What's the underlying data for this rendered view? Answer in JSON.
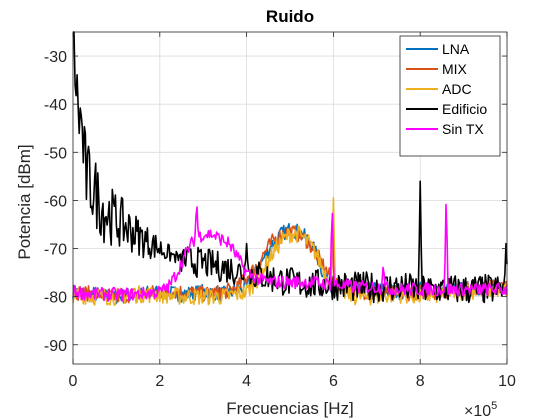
{
  "chart_data": {
    "type": "line",
    "title": "Ruido",
    "xlabel": "Frecuencias [Hz]",
    "ylabel": "Potencia [dBm]",
    "x_exponent_label": "×10",
    "x_exponent_power": "5",
    "xlim": [
      0,
      10
    ],
    "ylim": [
      -94,
      -25
    ],
    "xticks": [
      0,
      2,
      4,
      6,
      8,
      10
    ],
    "yticks": [
      -90,
      -80,
      -70,
      -60,
      -50,
      -40,
      -30
    ],
    "grid": true,
    "legend_position": "top-right",
    "series": [
      {
        "name": "LNA",
        "color": "#0072BD",
        "x": [
          0,
          0.5,
          1,
          1.5,
          2,
          2.5,
          3,
          3.5,
          4,
          4.2,
          4.4,
          4.6,
          4.8,
          5.0,
          5.2,
          5.4,
          5.6,
          5.8,
          6.0,
          6.2,
          6.5,
          7,
          7.5,
          8,
          8.5,
          9,
          9.5,
          10
        ],
        "y": [
          -79,
          -79.5,
          -80,
          -79.5,
          -79,
          -79.5,
          -79,
          -79.5,
          -78,
          -75,
          -72,
          -69,
          -67,
          -66,
          -66.5,
          -68,
          -71,
          -76,
          -78,
          -78.5,
          -78,
          -78.5,
          -79,
          -78.5,
          -79,
          -78.5,
          -78,
          -78
        ]
      },
      {
        "name": "MIX",
        "color": "#D95319",
        "x": [
          0,
          0.5,
          1,
          1.5,
          2,
          2.5,
          3,
          3.5,
          3.8,
          4.0,
          4.2,
          4.4,
          4.6,
          4.8,
          5.0,
          5.2,
          5.4,
          5.6,
          5.8,
          6.0,
          6.2,
          6.5,
          7,
          7.5,
          8,
          8.5,
          9,
          9.5,
          10
        ],
        "y": [
          -79,
          -79.5,
          -80,
          -79.5,
          -79,
          -79,
          -79.5,
          -79,
          -78,
          -76,
          -74,
          -71,
          -68.5,
          -67,
          -66.5,
          -67,
          -68.5,
          -71,
          -74,
          -77,
          -78,
          -79,
          -79,
          -79.5,
          -79,
          -79,
          -78.5,
          -78,
          -78
        ]
      },
      {
        "name": "ADC",
        "color": "#EDB120",
        "x": [
          0,
          0.5,
          1,
          1.5,
          2,
          2.5,
          3,
          3.5,
          4,
          4.2,
          4.4,
          4.6,
          4.8,
          5.0,
          5.2,
          5.4,
          5.6,
          5.8,
          6.0,
          6.2,
          6.5,
          7,
          7.5,
          8,
          8.5,
          9,
          9.5,
          10
        ],
        "y": [
          -79.5,
          -80,
          -80,
          -79.5,
          -79.5,
          -80,
          -80,
          -80,
          -79,
          -77,
          -74,
          -71,
          -68.5,
          -67,
          -67,
          -68.5,
          -71,
          -75,
          -78,
          -79,
          -80,
          -80,
          -79.5,
          -80,
          -79.5,
          -79,
          -78.5,
          -78.5
        ]
      },
      {
        "name": "Edificio",
        "color": "#000000",
        "x": [
          0,
          0.1,
          0.2,
          0.3,
          0.5,
          0.7,
          1.0,
          1.3,
          1.6,
          2.0,
          2.3,
          2.6,
          3.0,
          3.5,
          4.0,
          4.5,
          5.0,
          5.5,
          6.0,
          6.5,
          7.0,
          7.5,
          8.0,
          8.5,
          9.0,
          9.5,
          10
        ],
        "y": [
          -25,
          -40,
          -45,
          -55,
          -58,
          -62,
          -64,
          -66,
          -68,
          -70,
          -71.5,
          -72.5,
          -73,
          -74,
          -75,
          -76,
          -77,
          -77.5,
          -77.5,
          -78,
          -78,
          -78,
          -78.5,
          -78.5,
          -78.5,
          -78.5,
          -78.5
        ]
      },
      {
        "name": "Sin TX",
        "color": "#FF00FF",
        "x": [
          0,
          0.5,
          1.0,
          1.5,
          2.0,
          2.2,
          2.4,
          2.6,
          2.8,
          3.0,
          3.2,
          3.4,
          3.6,
          3.8,
          4.0,
          4.3,
          4.6,
          5.0,
          5.5,
          6.0,
          6.5,
          7.0,
          7.5,
          8.0,
          8.5,
          9.0,
          9.5,
          10
        ],
        "y": [
          -79,
          -79.5,
          -79.5,
          -79.5,
          -79,
          -78,
          -75,
          -71,
          -68,
          -67,
          -67,
          -68,
          -69,
          -72,
          -75,
          -76.5,
          -77,
          -77,
          -77,
          -77.5,
          -78,
          -78,
          -78.5,
          -78.5,
          -78.5,
          -78.5,
          -78.5,
          -78.5
        ]
      }
    ],
    "peaks": [
      {
        "series": "Edificio",
        "x": 4.0,
        "y": -69
      },
      {
        "series": "Edificio",
        "x": 8.0,
        "y": -56
      },
      {
        "series": "Edificio",
        "x": 9.98,
        "y": -68
      },
      {
        "series": "Sin TX",
        "x": 2.85,
        "y": -60
      },
      {
        "series": "Sin TX",
        "x": 5.97,
        "y": -60
      },
      {
        "series": "Sin TX",
        "x": 7.15,
        "y": -73
      },
      {
        "series": "Sin TX",
        "x": 8.6,
        "y": -58.5
      },
      {
        "series": "ADC",
        "x": 6.0,
        "y": -59.5
      }
    ]
  }
}
